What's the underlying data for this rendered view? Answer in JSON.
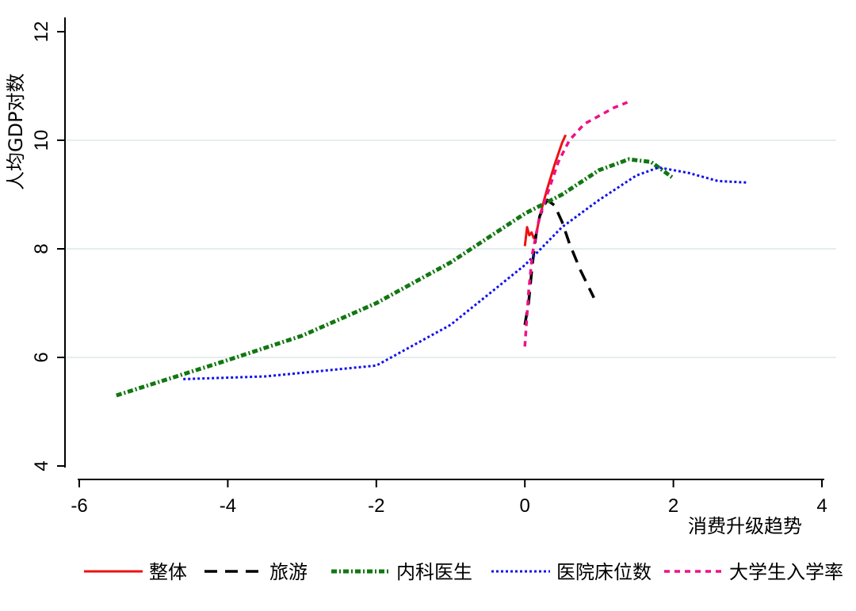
{
  "chart_data": {
    "type": "line",
    "xlabel": "消费升级趋势",
    "ylabel": "人均GDP对数",
    "xlim": [
      -6,
      4
    ],
    "ylim": [
      4,
      12
    ],
    "x_ticks": [
      -6,
      -4,
      -2,
      0,
      2,
      4
    ],
    "y_ticks": [
      4,
      6,
      8,
      10,
      12
    ],
    "x_tick_labels": [
      "-6",
      "-4",
      "-2",
      "0",
      "2",
      "4"
    ],
    "y_tick_labels": [
      "4",
      "6",
      "8",
      "10",
      "12"
    ],
    "grid": "horizontal",
    "legend_position": "bottom",
    "series": [
      {
        "name": "整体",
        "color": "#ee1111",
        "dash": "solid",
        "points": [
          [
            0.0,
            8.05
          ],
          [
            0.03,
            8.4
          ],
          [
            0.06,
            8.25
          ],
          [
            0.09,
            8.3
          ],
          [
            0.12,
            8.2
          ],
          [
            0.15,
            8.25
          ],
          [
            0.2,
            8.6
          ],
          [
            0.3,
            9.1
          ],
          [
            0.4,
            9.55
          ],
          [
            0.5,
            9.95
          ],
          [
            0.55,
            10.1
          ]
        ]
      },
      {
        "name": "旅游",
        "color": "#000000",
        "dash": "longdash",
        "points": [
          [
            0.0,
            6.6
          ],
          [
            0.05,
            7.0
          ],
          [
            0.1,
            7.7
          ],
          [
            0.15,
            8.25
          ],
          [
            0.2,
            8.6
          ],
          [
            0.3,
            8.9
          ],
          [
            0.4,
            8.8
          ],
          [
            0.5,
            8.5
          ],
          [
            0.6,
            8.1
          ],
          [
            0.75,
            7.6
          ],
          [
            0.93,
            7.1
          ]
        ]
      },
      {
        "name": "内科医生",
        "color": "#117711",
        "dash": "dashdot",
        "points": [
          [
            -5.5,
            5.3
          ],
          [
            -4.0,
            5.95
          ],
          [
            -3.0,
            6.4
          ],
          [
            -2.0,
            7.0
          ],
          [
            -1.0,
            7.75
          ],
          [
            0.0,
            8.65
          ],
          [
            0.5,
            9.0
          ],
          [
            1.0,
            9.45
          ],
          [
            1.4,
            9.65
          ],
          [
            1.7,
            9.6
          ],
          [
            2.0,
            9.3
          ]
        ]
      },
      {
        "name": "医院床位数",
        "color": "#1111ee",
        "dash": "dotted",
        "points": [
          [
            -4.6,
            5.6
          ],
          [
            -3.5,
            5.65
          ],
          [
            -2.0,
            5.85
          ],
          [
            -1.0,
            6.6
          ],
          [
            0.0,
            7.7
          ],
          [
            0.5,
            8.4
          ],
          [
            1.0,
            8.9
          ],
          [
            1.5,
            9.35
          ],
          [
            1.8,
            9.5
          ],
          [
            2.2,
            9.4
          ],
          [
            2.6,
            9.25
          ],
          [
            3.0,
            9.22
          ]
        ]
      },
      {
        "name": "大学生入学率",
        "color": "#ee1188",
        "dash": "dash",
        "points": [
          [
            0.0,
            6.2
          ],
          [
            0.05,
            7.2
          ],
          [
            0.1,
            7.9
          ],
          [
            0.2,
            8.6
          ],
          [
            0.3,
            9.0
          ],
          [
            0.45,
            9.6
          ],
          [
            0.6,
            10.0
          ],
          [
            0.8,
            10.3
          ],
          [
            1.0,
            10.45
          ],
          [
            1.2,
            10.6
          ],
          [
            1.38,
            10.7
          ]
        ]
      }
    ]
  }
}
